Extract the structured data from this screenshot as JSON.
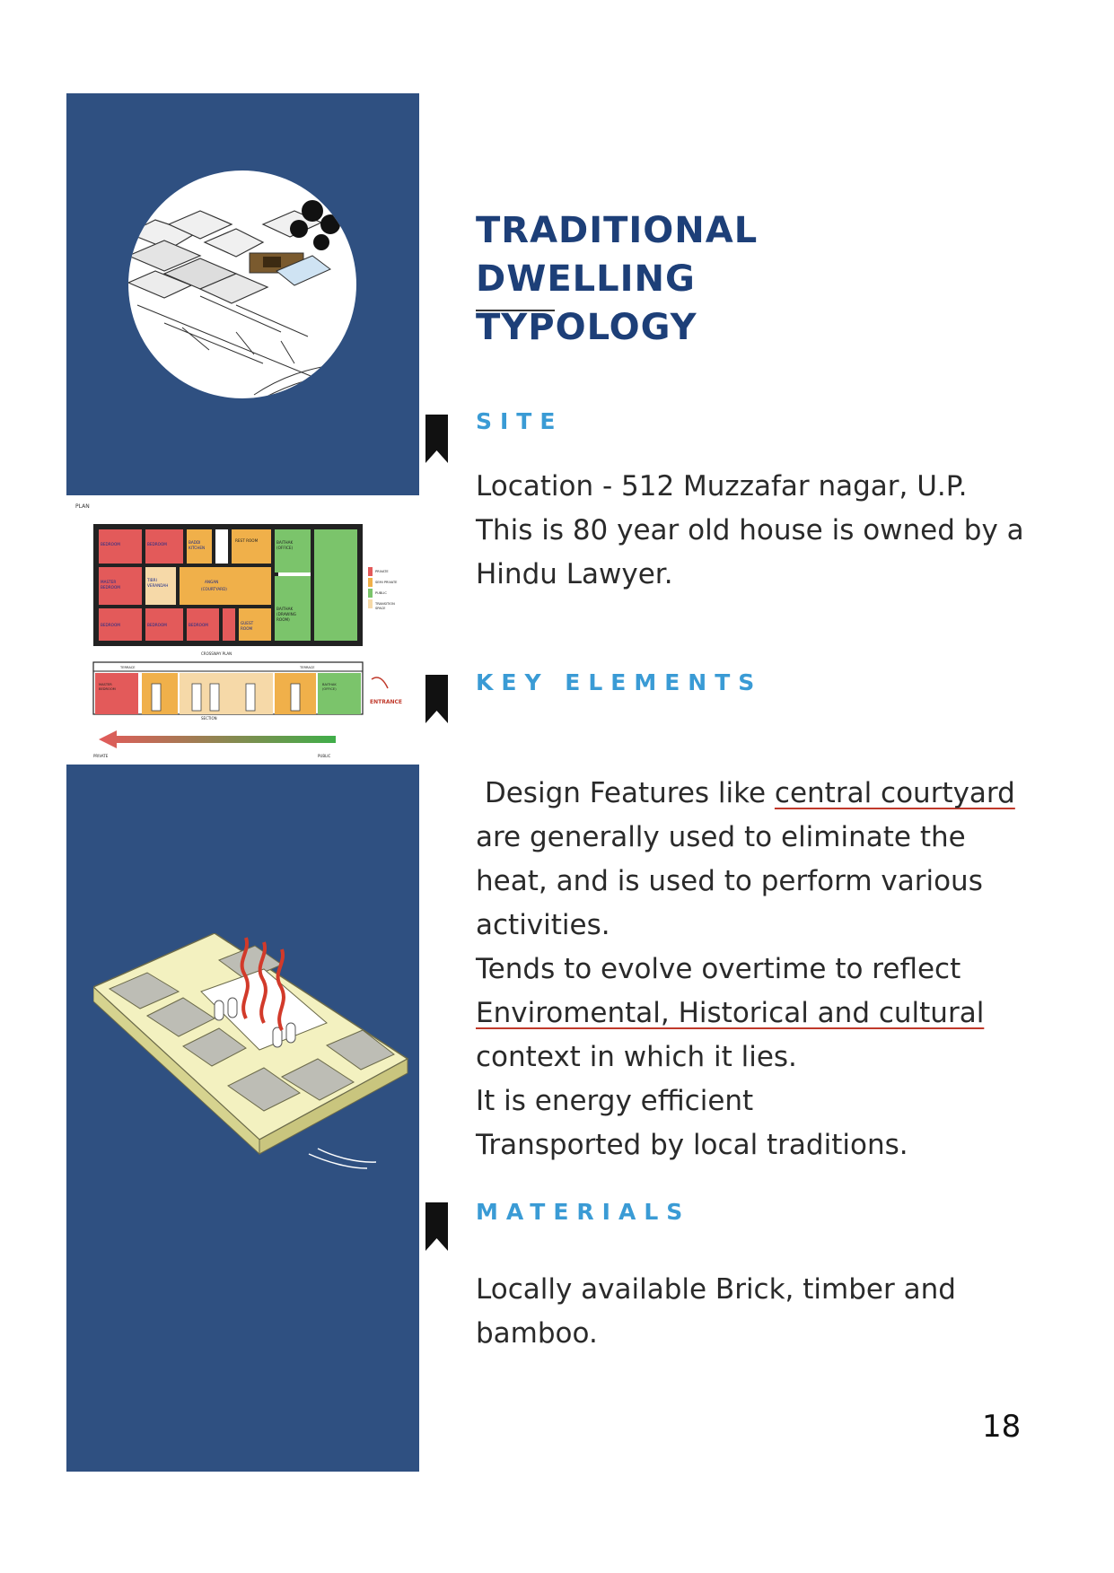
{
  "header": {
    "title_line1": "TRADITIONAL DWELLING",
    "title_line2": "TYPOLOGY"
  },
  "site": {
    "heading": "SITE",
    "lines": [
      "Location - 512 Muzzafar nagar, U.P.",
      "This is 80 year old house is owned by a",
      "Hindu Lawyer."
    ]
  },
  "key_elements": {
    "heading": "KEY ELEMENTS",
    "line1_pre": "Design Features like ",
    "line1_underlined": "central courtyard",
    "line2": "are generally used to eliminate the",
    "line3": "heat, and is used to perform various",
    "line4": "activities.",
    "line5": "Tends to evolve overtime to reflect",
    "line6_underlined": "Enviromental, Historical and cultural",
    "line7": "context in which it lies.",
    "line8": "It is energy efficient",
    "line9": "Transported by local traditions."
  },
  "materials": {
    "heading": "MATERIALS",
    "lines": [
      "Locally available Brick, timber and",
      "bamboo."
    ]
  },
  "plan_image": {
    "plan_label": "PLAN",
    "section_label": "SECTION",
    "crosswalk_label": "CROSSWAY PLAN",
    "entrance_label": "ENTRANCE",
    "private_label": "PRIVATE",
    "public_label": "PUBLIC",
    "rooms": [
      "BEDROOM",
      "BEDROOM",
      "BADDI KITCHEN",
      "REST ROOM",
      "BAITHAK (OFFICE)",
      "MASTER BEDROOM",
      "TIBRI (VERANDAH)",
      "ANGAN (COURTYARD)",
      "BEDROOM",
      "BEDROOM",
      "BEDROOM",
      "STORE",
      "GUEST ROOM",
      "BAITHAK (DRAWING ROOM)"
    ],
    "legend": [
      "PRIVATE",
      "SEMI PRIVATE",
      "PUBLIC",
      "TRANSITION SPACE"
    ],
    "section_rooms": [
      "TERRACE",
      "TERRACE",
      "MASTER BEDROOM",
      "BAITHAK (OFFICE)"
    ]
  },
  "colors": {
    "panel": "#2f5081",
    "title": "#1d3f78",
    "section_heading": "#3a9bd5",
    "underline": "#c0392b"
  },
  "page_number": "18"
}
